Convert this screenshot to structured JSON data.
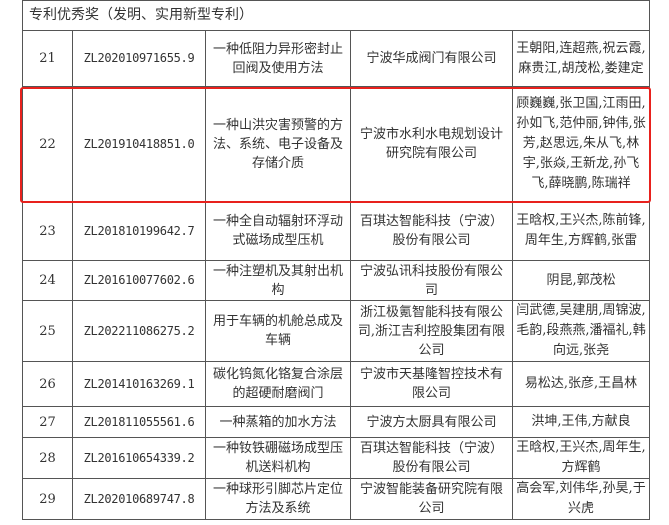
{
  "section_title": "专利优秀奖（发明、实用新型专利）",
  "highlight_color": "#e8211d",
  "rows": [
    {
      "no": "21",
      "patent_id": "ZL202010971655.9",
      "title": "一种低阻力异形密封止回阀及使用方法",
      "company": "宁波华成阀门有限公司",
      "inventors": "王朝阳,连超燕,祝云霞,麻贵江,胡茂松,娄建定"
    },
    {
      "no": "22",
      "patent_id": "ZL201910418851.0",
      "title": "一种山洪灾害预警的方法、系统、电子设备及存储介质",
      "company": "宁波市水利水电规划设计研究院有限公司",
      "inventors": "顾巍巍,张卫国,江雨田,孙如飞,范仲丽,钟伟,张芳,赵思远,朱从飞,林宇,张焱,王新龙,孙飞飞,薛晓鹏,陈瑞祥"
    },
    {
      "no": "23",
      "patent_id": "ZL201810199642.7",
      "title": "一种全自动辐射环浮动式磁场成型压机",
      "company": "百琪达智能科技（宁波）股份有限公司",
      "inventors": "王晗权,王兴杰,陈前锋,周年生,方辉鹤,张雷"
    },
    {
      "no": "24",
      "patent_id": "ZL201610077602.6",
      "title": "一种注塑机及其射出机构",
      "company": "宁波弘讯科技股份有限公司",
      "inventors": "阴昆,郭茂松"
    },
    {
      "no": "25",
      "patent_id": "ZL202211086275.2",
      "title": "用于车辆的机舱总成及车辆",
      "company": "浙江极氪智能科技有限公司,浙江吉利控股集团有限公司",
      "inventors": "闫武德,吴建朋,周锦波,毛韵,段燕燕,潘福礼,韩向远,张尧"
    },
    {
      "no": "26",
      "patent_id": "ZL201410163269.1",
      "title": "碳化钨氮化铬复合涂层的超硬耐磨阀门",
      "company": "宁波市天基隆智控技术有限公司",
      "inventors": "易松达,张彦,王昌林"
    },
    {
      "no": "27",
      "patent_id": "ZL201811055561.6",
      "title": "一种蒸箱的加水方法",
      "company": "宁波方太厨具有限公司",
      "inventors": "洪坤,王伟,方献良"
    },
    {
      "no": "28",
      "patent_id": "ZL201610654339.2",
      "title": "一种钕铁硼磁场成型压机送料机构",
      "company": "百琪达智能科技（宁波）股份有限公司",
      "inventors": "王晗权,王兴杰,周年生,方辉鹤"
    },
    {
      "no": "29",
      "patent_id": "ZL202010689747.8",
      "title": "一种球形引脚芯片定位方法及系统",
      "company": "宁波智能装备研究院有限公司",
      "inventors": "高会军,刘伟华,孙昊,于兴虎"
    }
  ]
}
